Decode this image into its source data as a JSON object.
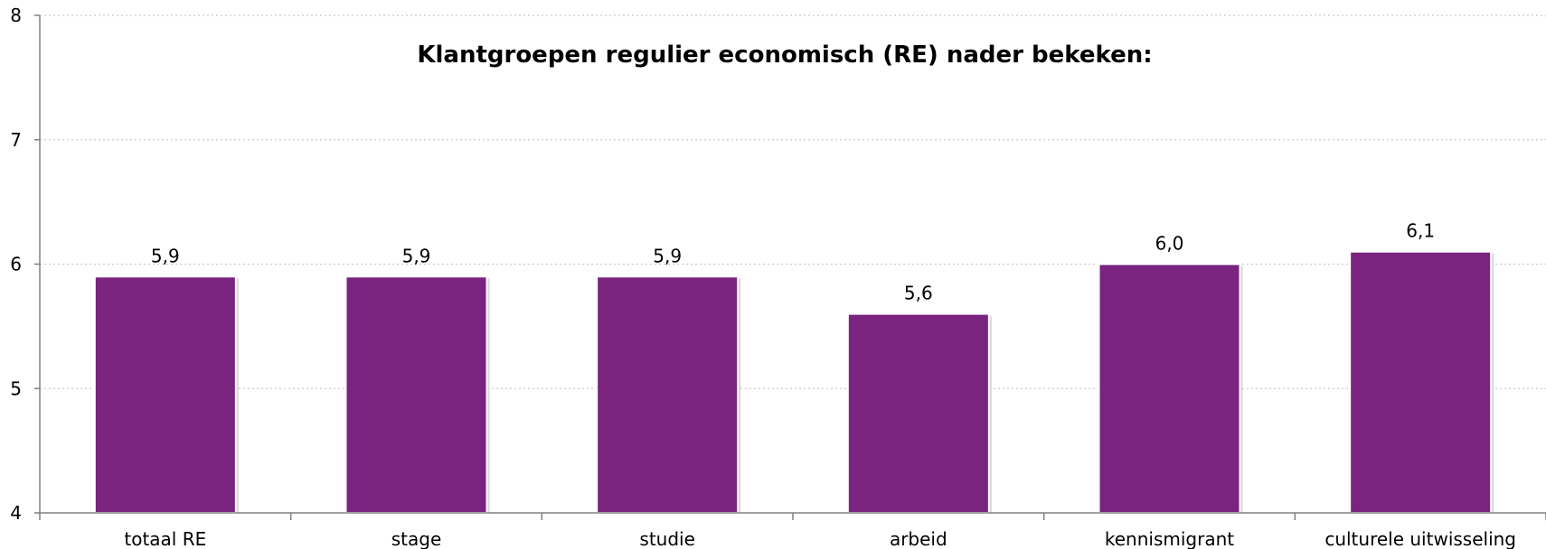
{
  "chart_data": {
    "type": "bar",
    "title": "Klantgroepen regulier economisch (RE) nader bekeken:",
    "xlabel": "",
    "ylabel": "",
    "categories": [
      "totaal RE",
      "stage",
      "studie",
      "arbeid",
      "kennismigrant",
      "culturele uitwisseling"
    ],
    "values": [
      5.9,
      5.9,
      5.9,
      5.6,
      6.0,
      6.1
    ],
    "value_labels": [
      "5,9",
      "5,9",
      "5,9",
      "5,6",
      "6,0",
      "6,1"
    ],
    "ylim": [
      4,
      8
    ],
    "yticks": [
      "4",
      "5",
      "6",
      "7",
      "8"
    ],
    "grid": true,
    "legend": "none",
    "colors": {
      "bar": "#7a237f",
      "bar_shadow": "#d8d8d8",
      "axis": "#808080",
      "grid": "#bfbfbf"
    }
  }
}
